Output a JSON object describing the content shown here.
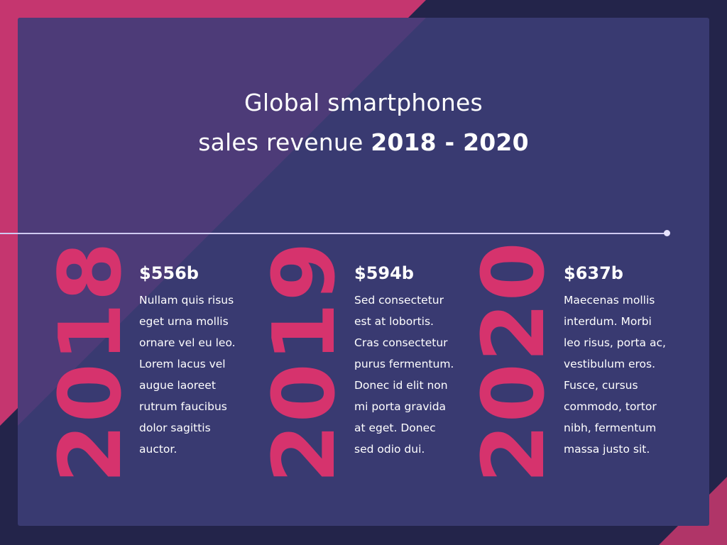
{
  "slide": {
    "title_line1": "Global smartphones",
    "title_line2_prefix": "sales revenue ",
    "title_line2_bold": "2018 - 2020",
    "colors": {
      "background": "#23244a",
      "panel": "#393a71",
      "accent_pink": "#d6336d",
      "text": "#ffffff",
      "timeline": "#cfc9f1"
    },
    "years": [
      {
        "year": "2018",
        "amount": "$556b",
        "description": "Nullam quis risus\neget urna mollis\nornare vel eu leo.\nLorem lacus vel\naugue laoreet\nrutrum faucibus\ndolor sagittis\nauctor."
      },
      {
        "year": "2019",
        "amount": "$594b",
        "description": "Sed consectetur\nest at lobortis.\nCras consectetur\npurus fermentum.\nDonec id elit non\nmi porta gravida\nat eget. Donec\nsed odio dui."
      },
      {
        "year": "2020",
        "amount": "$637b",
        "description": "Maecenas mollis\ninterdum. Morbi\nleo risus, porta ac,\nvestibulum eros.\nFusce, cursus\ncommodo, tortor\nnibh, fermentum\nmassa justo sit."
      }
    ]
  }
}
